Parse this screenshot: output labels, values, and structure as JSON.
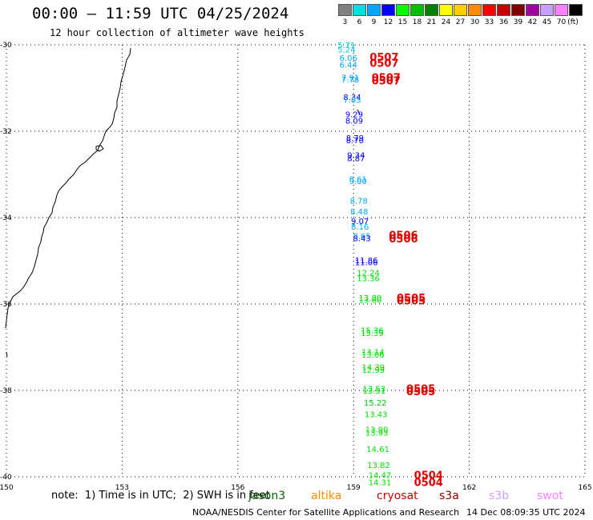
{
  "header": {
    "title": "00:00 – 11:59 UTC 04/25/2024",
    "subtitle": "12 hour collection of altimeter wave heights"
  },
  "legend": {
    "unit": "(ft)",
    "bins": [
      {
        "label": "3",
        "color": "#808080"
      },
      {
        "label": "6",
        "color": "#00e0e0"
      },
      {
        "label": "9",
        "color": "#00a8ff"
      },
      {
        "label": "12",
        "color": "#0000ff"
      },
      {
        "label": "15",
        "color": "#00ff00"
      },
      {
        "label": "18",
        "color": "#00c000"
      },
      {
        "label": "21",
        "color": "#008000"
      },
      {
        "label": "24",
        "color": "#ffff00"
      },
      {
        "label": "27",
        "color": "#ffcc00"
      },
      {
        "label": "30",
        "color": "#ff8c00"
      },
      {
        "label": "33",
        "color": "#ff0000"
      },
      {
        "label": "36",
        "color": "#c80000"
      },
      {
        "label": "39",
        "color": "#800000"
      },
      {
        "label": "42",
        "color": "#a000a0"
      },
      {
        "label": "45",
        "color": "#c8a0ff"
      },
      {
        "label": "70",
        "color": "#ff80ff"
      },
      {
        "label": "",
        "color": "#000000"
      }
    ]
  },
  "map": {
    "lon_ticks": [
      "150",
      "153",
      "156",
      "159",
      "162",
      "165"
    ],
    "lat_ticks": [
      "-30",
      "-32",
      "-34",
      "-36",
      "-38",
      "-40"
    ],
    "lon_range": [
      150,
      165
    ],
    "lat_range": [
      -40,
      -30
    ],
    "observations": [
      {
        "lon": 159.0,
        "lat": -30.0,
        "value": "5.71",
        "color": "#00c8e0"
      },
      {
        "lon": 159.0,
        "lat": -30.1,
        "value": "5.24",
        "color": "#00c8e0"
      },
      {
        "lon": 159.05,
        "lat": -30.3,
        "value": "6.06",
        "color": "#00a8ff"
      },
      {
        "lon": 159.05,
        "lat": -30.45,
        "value": "6.44",
        "color": "#00a8ff"
      },
      {
        "lon": 159.1,
        "lat": -30.75,
        "value": "7.91",
        "color": "#00a8ff"
      },
      {
        "lon": 159.1,
        "lat": -30.8,
        "value": "7.78",
        "color": "#00a8ff"
      },
      {
        "lon": 159.15,
        "lat": -31.2,
        "value": "8.34",
        "color": "#0000ff"
      },
      {
        "lon": 159.15,
        "lat": -31.27,
        "value": "7.83",
        "color": "#00a8ff"
      },
      {
        "lon": 159.2,
        "lat": -31.6,
        "value": "9.29",
        "color": "#0000ff"
      },
      {
        "lon": 159.2,
        "lat": -31.75,
        "value": "8.09",
        "color": "#0000ff"
      },
      {
        "lon": 159.22,
        "lat": -32.15,
        "value": "8.79",
        "color": "#0000ff"
      },
      {
        "lon": 159.22,
        "lat": -32.2,
        "value": "8.70",
        "color": "#0000ff"
      },
      {
        "lon": 159.25,
        "lat": -32.55,
        "value": "9.34",
        "color": "#0000ff"
      },
      {
        "lon": 159.25,
        "lat": -32.62,
        "value": "8.87",
        "color": "#0000ff"
      },
      {
        "lon": 159.3,
        "lat": -33.1,
        "value": "8.61",
        "color": "#00a8ff"
      },
      {
        "lon": 159.3,
        "lat": -33.15,
        "value": "9.00",
        "color": "#00a8ff"
      },
      {
        "lon": 159.32,
        "lat": -33.6,
        "value": "8.78",
        "color": "#00a8ff"
      },
      {
        "lon": 159.33,
        "lat": -33.85,
        "value": "8.48",
        "color": "#00a8ff"
      },
      {
        "lon": 159.35,
        "lat": -34.07,
        "value": "9.07",
        "color": "#0000ff"
      },
      {
        "lon": 159.35,
        "lat": -34.2,
        "value": "8.16",
        "color": "#00a8ff"
      },
      {
        "lon": 159.4,
        "lat": -34.42,
        "value": "8.65",
        "color": "#00a8ff"
      },
      {
        "lon": 159.4,
        "lat": -34.47,
        "value": "8.43",
        "color": "#0000ff"
      },
      {
        "lon": 159.45,
        "lat": -34.98,
        "value": "11.86",
        "color": "#0000ff"
      },
      {
        "lon": 159.45,
        "lat": -35.03,
        "value": "11.06",
        "color": "#0000ff"
      },
      {
        "lon": 159.5,
        "lat": -35.27,
        "value": "12.24",
        "color": "#00e000"
      },
      {
        "lon": 159.5,
        "lat": -35.4,
        "value": "13.36",
        "color": "#00e000"
      },
      {
        "lon": 159.55,
        "lat": -35.85,
        "value": "13.80",
        "color": "#00e000"
      },
      {
        "lon": 159.55,
        "lat": -35.9,
        "value": "13.60",
        "color": "#00e000"
      },
      {
        "lon": 159.6,
        "lat": -36.6,
        "value": "15.36",
        "color": "#00e000"
      },
      {
        "lon": 159.6,
        "lat": -36.67,
        "value": "15.39",
        "color": "#00e000"
      },
      {
        "lon": 159.62,
        "lat": -37.1,
        "value": "13.14",
        "color": "#00e000"
      },
      {
        "lon": 159.62,
        "lat": -37.17,
        "value": "13.06",
        "color": "#00e000"
      },
      {
        "lon": 159.63,
        "lat": -37.45,
        "value": "14.39",
        "color": "#00e000"
      },
      {
        "lon": 159.63,
        "lat": -37.52,
        "value": "12.99",
        "color": "#00e000"
      },
      {
        "lon": 159.65,
        "lat": -37.95,
        "value": "13.53",
        "color": "#00e000"
      },
      {
        "lon": 159.65,
        "lat": -38.0,
        "value": "13.51",
        "color": "#00e000"
      },
      {
        "lon": 159.68,
        "lat": -38.28,
        "value": "15.22",
        "color": "#00c000"
      },
      {
        "lon": 159.7,
        "lat": -38.55,
        "value": "13.43",
        "color": "#00e000"
      },
      {
        "lon": 159.72,
        "lat": -38.9,
        "value": "13.90",
        "color": "#00e000"
      },
      {
        "lon": 159.72,
        "lat": -38.97,
        "value": "13.93",
        "color": "#00e000"
      },
      {
        "lon": 159.75,
        "lat": -39.35,
        "value": "14.61",
        "color": "#00e000"
      },
      {
        "lon": 159.77,
        "lat": -39.72,
        "value": "13.82",
        "color": "#00e000"
      },
      {
        "lon": 159.8,
        "lat": -39.95,
        "value": "14.47",
        "color": "#00e000"
      },
      {
        "lon": 159.8,
        "lat": -40.12,
        "value": "14.31",
        "color": "#00e000"
      }
    ],
    "time_markers": [
      {
        "lon": 160.0,
        "lat": -30.28,
        "value": "0507"
      },
      {
        "lon": 160.0,
        "lat": -30.42,
        "value": "0507"
      },
      {
        "lon": 160.05,
        "lat": -30.75,
        "value": "0507"
      },
      {
        "lon": 160.05,
        "lat": -30.82,
        "value": "0507"
      },
      {
        "lon": 160.5,
        "lat": -34.4,
        "value": "0506"
      },
      {
        "lon": 160.5,
        "lat": -34.48,
        "value": "0506"
      },
      {
        "lon": 160.7,
        "lat": -35.85,
        "value": "0505"
      },
      {
        "lon": 160.7,
        "lat": -35.92,
        "value": "0505"
      },
      {
        "lon": 160.95,
        "lat": -37.95,
        "value": "0505"
      },
      {
        "lon": 160.95,
        "lat": -38.02,
        "value": "0505"
      },
      {
        "lon": 161.15,
        "lat": -39.95,
        "value": "0504"
      },
      {
        "lon": 161.15,
        "lat": -40.12,
        "value": "0504"
      }
    ]
  },
  "footer": {
    "note": "note:  1) Time is in UTC;  2) SWH is in feet",
    "satellites": [
      {
        "name": "jason3",
        "color": "#006400"
      },
      {
        "name": "altika",
        "color": "#ff8c00"
      },
      {
        "name": "cryosat",
        "color": "#c80000"
      },
      {
        "name": "s3a",
        "color": "#8b0000"
      },
      {
        "name": "s3b",
        "color": "#c8a0ff"
      },
      {
        "name": "swot",
        "color": "#ff80ff"
      }
    ],
    "credit": "NOAA/NESDIS Center for Satellite Applications and Research",
    "timestamp": "14 Dec 08:09:35 UTC 2024"
  }
}
